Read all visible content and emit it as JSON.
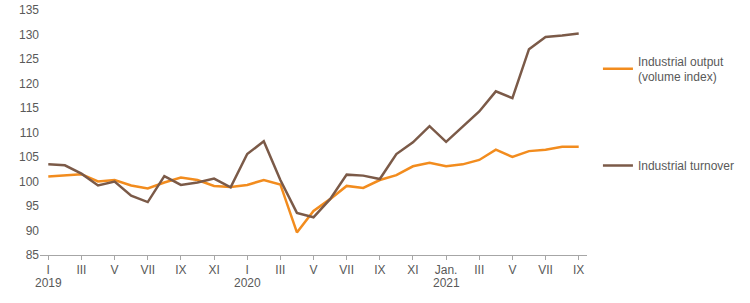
{
  "chart_data": {
    "type": "line",
    "categories": [
      "I",
      null,
      "III",
      null,
      "V",
      null,
      "VII",
      null,
      "IX",
      null,
      "XI",
      null,
      "I",
      null,
      "III",
      null,
      "V",
      null,
      "VII",
      null,
      "IX",
      null,
      "XI",
      null,
      "Jan.",
      null,
      "III",
      null,
      "V",
      null,
      "VII",
      null,
      "IX"
    ],
    "series": [
      {
        "name": "Industrial output (volume index)",
        "color": "#f28c1e",
        "values": [
          101.0,
          101.3,
          101.5,
          100.0,
          100.3,
          99.2,
          98.6,
          99.8,
          100.8,
          100.3,
          99.1,
          98.9,
          99.3,
          100.3,
          99.4,
          89.6,
          94.0,
          96.4,
          99.1,
          98.7,
          100.3,
          101.3,
          103.1,
          103.8,
          103.1,
          103.5,
          104.4,
          106.5,
          105.0,
          106.2,
          106.5,
          107.1,
          107.1
        ]
      },
      {
        "name": "Industrial turnover",
        "color": "#7b5a48",
        "values": [
          103.5,
          103.3,
          101.6,
          99.2,
          100.0,
          97.1,
          95.8,
          101.1,
          99.3,
          99.8,
          100.6,
          98.8,
          105.6,
          108.2,
          100.3,
          93.6,
          92.7,
          96.4,
          101.4,
          101.2,
          100.5,
          105.6,
          108.0,
          111.3,
          108.1,
          111.3,
          114.3,
          118.4,
          117.0,
          127.0,
          129.5,
          129.8,
          130.2
        ]
      }
    ],
    "ylim": [
      85,
      135
    ],
    "yticks": [
      85,
      90,
      95,
      100,
      105,
      110,
      115,
      120,
      125,
      130,
      135
    ],
    "grid": false,
    "legend": "right",
    "annotations": [
      {
        "text": "2019",
        "x": 0
      },
      {
        "text": "2020",
        "x": 12
      },
      {
        "text": "2021",
        "x": 24
      }
    ]
  }
}
